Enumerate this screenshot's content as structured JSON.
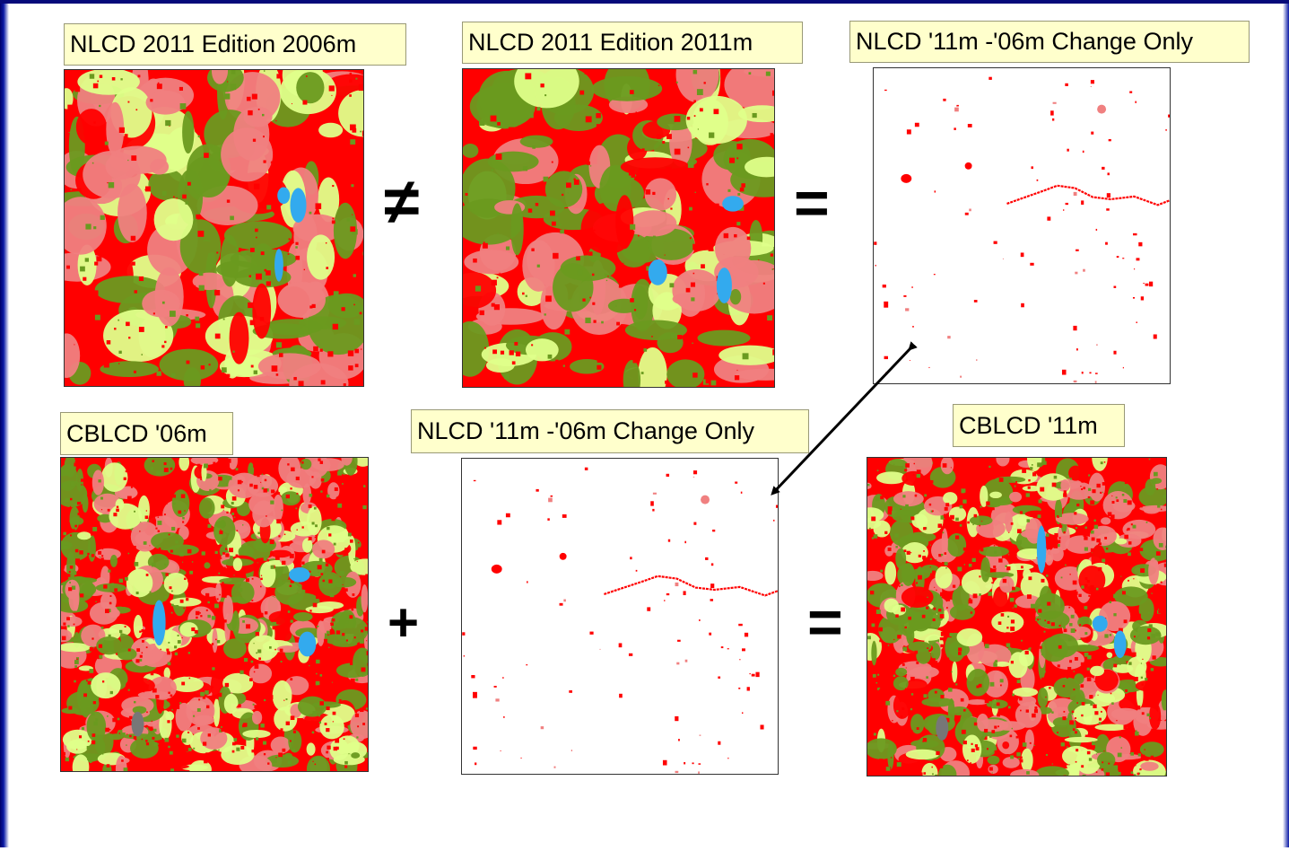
{
  "labels": {
    "nlcd_2006": "NLCD 2011 Edition 2006m",
    "nlcd_2011": "NLCD 2011 Edition 2011m",
    "change_top": "NLCD '11m -'06m Change Only",
    "cblcd_06": "CBLCD '06m",
    "change_bottom": "NLCD '11m -'06m Change Only",
    "cblcd_11": "CBLCD '11m"
  },
  "operators": {
    "not_equal": "≠",
    "equals_top": "=",
    "plus": "+",
    "equals_bottom": "="
  },
  "colors": {
    "developed_high": "#ff0000",
    "developed_low": "#f08080",
    "forest": "#6a9a1f",
    "grass": "#dfff8a",
    "water": "#33aaee",
    "barren": "#777777",
    "label_bg": "#ffffcc",
    "frame_blue": "#0a1aa6"
  }
}
